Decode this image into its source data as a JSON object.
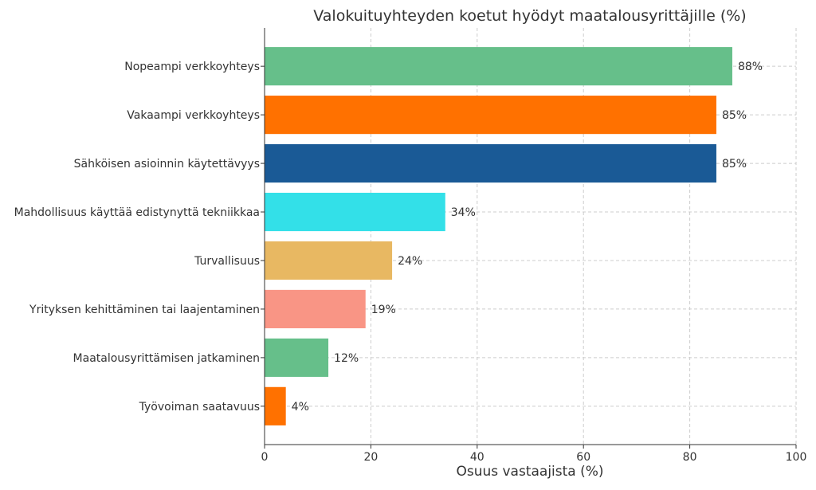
{
  "chart_data": {
    "type": "bar",
    "orientation": "horizontal",
    "title": "Valokuituyhteyden koetut hyödyt maatalousyrittäjille (%)",
    "xlabel": "Osuus vastaajista (%)",
    "ylabel": "",
    "xlim": [
      0,
      100
    ],
    "xticks": [
      0,
      20,
      40,
      60,
      80,
      100
    ],
    "grid": true,
    "categories": [
      "Nopeampi verkkoyhteys",
      "Vakaampi verkkoyhteys",
      "Sähköisen asioinnin käytettävyys",
      "Mahdollisuus käyttää edistynyttä tekniikkaa",
      "Turvallisuus",
      "Yrityksen kehittäminen tai laajentaminen",
      "Maatalousyrittämisen jatkaminen",
      "Työvoiman saatavuus"
    ],
    "values": [
      88,
      85,
      85,
      34,
      24,
      19,
      12,
      4
    ],
    "data_labels": [
      "88%",
      "85%",
      "85%",
      "34%",
      "24%",
      "19%",
      "12%",
      "4%"
    ],
    "colors": [
      "#66bf8a",
      "#ff7100",
      "#1a5a96",
      "#33e0e8",
      "#e8b862",
      "#f99585",
      "#66bf8a",
      "#ff7100"
    ]
  }
}
